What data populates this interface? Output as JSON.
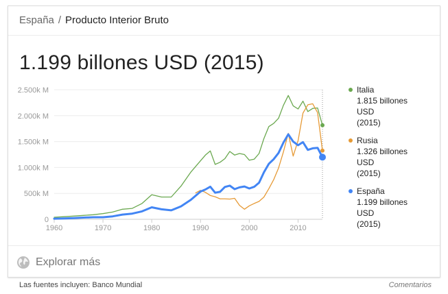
{
  "breadcrumb": {
    "country": "España",
    "separator": "/",
    "topic": "Producto Interior Bruto"
  },
  "headline": "1.199 billones USD (2015)",
  "legend": [
    {
      "name": "Italia",
      "value": "1.815 billones",
      "unit": "USD",
      "year": "(2015)",
      "color": "#6aa84f"
    },
    {
      "name": "Rusia",
      "value": "1.326 billones",
      "unit": "USD",
      "year": "(2015)",
      "color": "#e69a36"
    },
    {
      "name": "España",
      "value": "1.199 billones",
      "unit": "USD",
      "year": "(2015)",
      "color": "#4285f4"
    }
  ],
  "explore": {
    "label": "Explorar más",
    "icon": "globe-icon"
  },
  "footer": {
    "sources": "Las fuentes incluyen: Banco Mundial",
    "feedback": "Comentarios"
  },
  "chart_data": {
    "type": "line",
    "xlim": [
      1960,
      2015
    ],
    "ylim": [
      0,
      2500
    ],
    "x_ticks": [
      1960,
      1970,
      1980,
      1990,
      2000,
      2010
    ],
    "y_ticks": [
      0,
      500,
      1000,
      1500,
      2000,
      2500
    ],
    "y_tick_labels": [
      "0",
      "500k M",
      "1.000k M",
      "1.500k M",
      "2.000k M",
      "2.500k M"
    ],
    "grid": true,
    "legend_position": "right",
    "series": [
      {
        "name": "Italia",
        "color": "#6aa84f",
        "x": [
          1960,
          1962,
          1964,
          1966,
          1968,
          1970,
          1972,
          1974,
          1976,
          1978,
          1980,
          1982,
          1984,
          1986,
          1988,
          1990,
          1991,
          1992,
          1993,
          1994,
          1995,
          1996,
          1997,
          1998,
          1999,
          2000,
          2001,
          2002,
          2003,
          2004,
          2005,
          2006,
          2007,
          2008,
          2009,
          2010,
          2011,
          2012,
          2013,
          2014,
          2015
        ],
        "y": [
          40,
          50,
          62,
          75,
          88,
          110,
          140,
          195,
          210,
          305,
          475,
          430,
          430,
          640,
          910,
          1130,
          1240,
          1320,
          1060,
          1100,
          1170,
          1310,
          1240,
          1270,
          1250,
          1140,
          1160,
          1270,
          1560,
          1790,
          1850,
          1950,
          2200,
          2390,
          2190,
          2130,
          2280,
          2080,
          2140,
          2150,
          1815
        ]
      },
      {
        "name": "Rusia",
        "color": "#e69a36",
        "x": [
          1989,
          1990,
          1991,
          1992,
          1993,
          1994,
          1995,
          1996,
          1997,
          1998,
          1999,
          2000,
          2001,
          2002,
          2003,
          2004,
          2005,
          2006,
          2007,
          2008,
          2009,
          2010,
          2011,
          2012,
          2013,
          2014,
          2015
        ],
        "y": [
          510,
          560,
          520,
          460,
          435,
          395,
          395,
          390,
          405,
          270,
          195,
          260,
          305,
          345,
          430,
          590,
          765,
          990,
          1300,
          1660,
          1220,
          1520,
          2050,
          2210,
          2230,
          2060,
          1326
        ]
      },
      {
        "name": "España",
        "color": "#4285f4",
        "x": [
          1960,
          1962,
          1964,
          1966,
          1968,
          1970,
          1972,
          1974,
          1976,
          1978,
          1980,
          1982,
          1984,
          1986,
          1988,
          1990,
          1991,
          1992,
          1993,
          1994,
          1995,
          1996,
          1997,
          1998,
          1999,
          2000,
          2001,
          2002,
          2003,
          2004,
          2005,
          2006,
          2007,
          2008,
          2009,
          2010,
          2011,
          2012,
          2013,
          2014,
          2015
        ],
        "y": [
          12,
          17,
          24,
          33,
          40,
          40,
          57,
          91,
          110,
          154,
          232,
          193,
          173,
          250,
          375,
          536,
          576,
          630,
          513,
          531,
          625,
          650,
          582,
          616,
          634,
          595,
          627,
          706,
          908,
          1070,
          1160,
          1280,
          1480,
          1640,
          1500,
          1430,
          1490,
          1340,
          1370,
          1380,
          1199
        ]
      }
    ]
  }
}
